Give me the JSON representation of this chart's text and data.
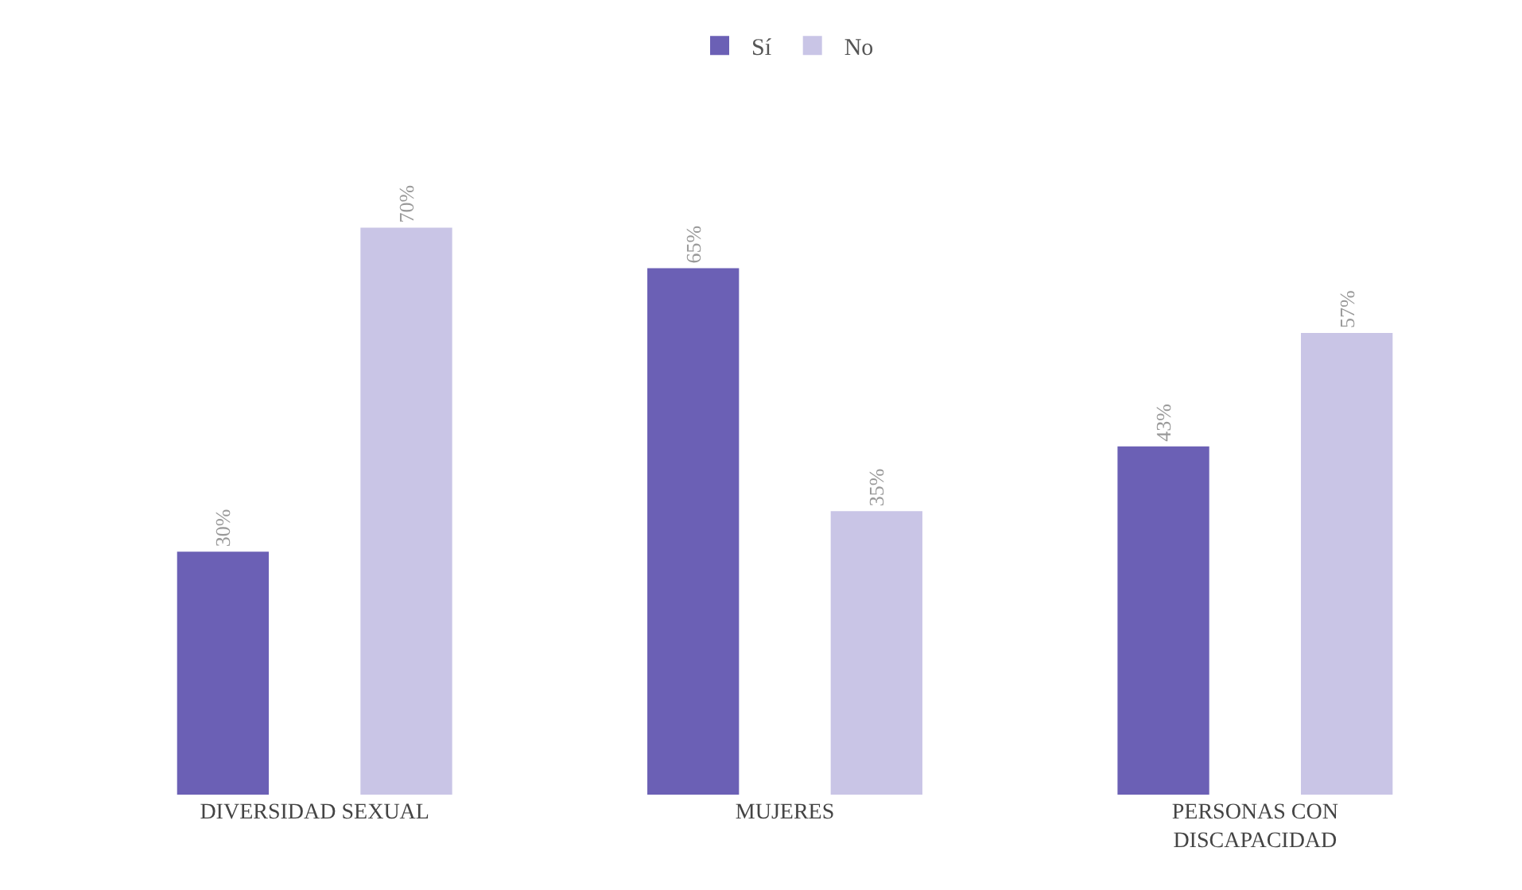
{
  "chart_data": {
    "type": "bar",
    "categories": [
      "DIVERSIDAD SEXUAL",
      "MUJERES",
      "PERSONAS CON DISCAPACIDAD"
    ],
    "series": [
      {
        "name": "Sí",
        "color": "#6b60b5",
        "values": [
          30,
          65,
          43
        ],
        "value_labels": [
          "30%",
          "65%",
          "43%"
        ]
      },
      {
        "name": "No",
        "color": "#c9c5e6",
        "values": [
          70,
          35,
          57
        ],
        "value_labels": [
          "70%",
          "35%",
          "57%"
        ]
      }
    ],
    "legend": "top"
  }
}
